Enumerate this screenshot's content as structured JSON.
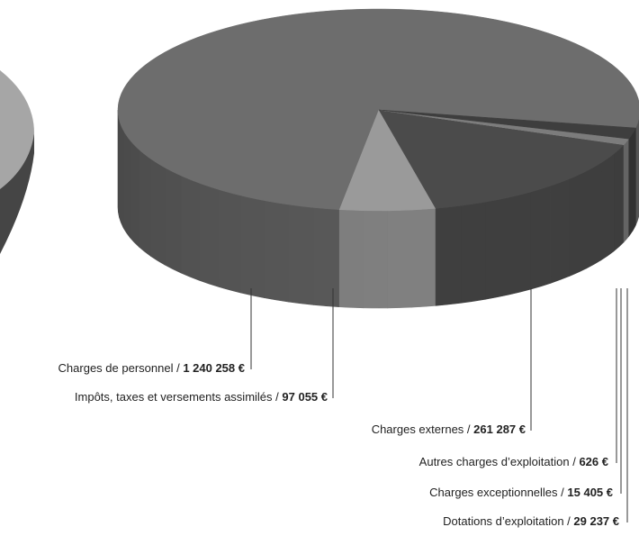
{
  "chart_data": {
    "type": "pie",
    "style": "3d",
    "unit": "€",
    "slices": [
      {
        "label": "Charges de personnel",
        "value": 1240258,
        "value_text": "1 240 258 €",
        "color": "#6d6d6d"
      },
      {
        "label": "Impôts, taxes et versements assimilés",
        "value": 97055,
        "value_text": "97 055 €",
        "color": "#9a9a9a"
      },
      {
        "label": "Charges externes",
        "value": 261287,
        "value_text": "261 287 €",
        "color": "#4b4b4b"
      },
      {
        "label": "Autres charges d’exploitation",
        "value": 626,
        "value_text": "626 €",
        "color": "#8a8a8a"
      },
      {
        "label": "Charges exceptionnelles",
        "value": 15405,
        "value_text": "15 405 €",
        "color": "#7c7c7c"
      },
      {
        "label": "Dotations d’exploitation",
        "value": 29237,
        "value_text": "29 237 €",
        "color": "#3e3e3e"
      }
    ],
    "neighbour_pie": {
      "colors": [
        "#a6a6a6",
        "#454545"
      ]
    }
  }
}
